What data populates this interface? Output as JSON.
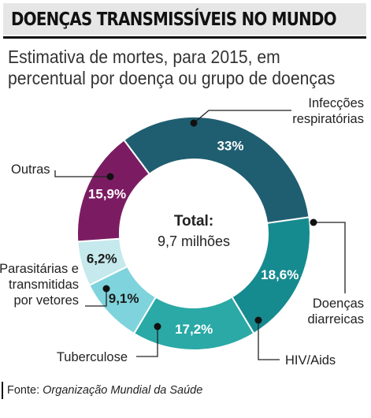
{
  "title": "DOENÇAS TRANSMISSÍVEIS NO MUNDO",
  "subtitle": "Estimativa de mortes, para 2015, em percentual por doença ou grupo de doenças",
  "center": {
    "label": "Total:",
    "value": "9,7 milhões"
  },
  "source": {
    "label": "Fonte",
    "separator": ":",
    "value": "Organização Mundial da Saúde"
  },
  "colors": {
    "respiratory": "#1f5e70",
    "diarrheal": "#168b8f",
    "hiv": "#2aa9a6",
    "tb": "#7fd3dc",
    "parasitic": "#c5e9ec",
    "other": "#7b1c63"
  },
  "chart_data": {
    "type": "pie",
    "donut": true,
    "slices": [
      {
        "name": "Infecções respiratórias",
        "value": 33,
        "label": "33%",
        "color_key": "respiratory"
      },
      {
        "name": "Doenças diarreicas",
        "value": 18.6,
        "label": "18,6%",
        "color_key": "diarrheal"
      },
      {
        "name": "HIV/Aids",
        "value": 17.2,
        "label": "17,2%",
        "color_key": "hiv"
      },
      {
        "name": "Tuberculose",
        "value": 9.1,
        "label": "9,1%",
        "color_key": "tb"
      },
      {
        "name": "Parasitárias e transmitidas por vetores",
        "value": 6.2,
        "label": "6,2%",
        "color_key": "parasitic"
      },
      {
        "name": "Outras",
        "value": 15.9,
        "label": "15,9%",
        "color_key": "other"
      }
    ],
    "callouts": [
      {
        "lines": [
          "Infecções",
          "respiratórias"
        ]
      },
      {
        "lines": [
          "Doenças",
          "diarreicas"
        ]
      },
      {
        "lines": [
          "HIV/Aids"
        ]
      },
      {
        "lines": [
          "Tuberculose"
        ]
      },
      {
        "lines": [
          "Parasitárias e",
          "transmitidas",
          "por vetores"
        ]
      },
      {
        "lines": [
          "Outras"
        ]
      }
    ]
  }
}
